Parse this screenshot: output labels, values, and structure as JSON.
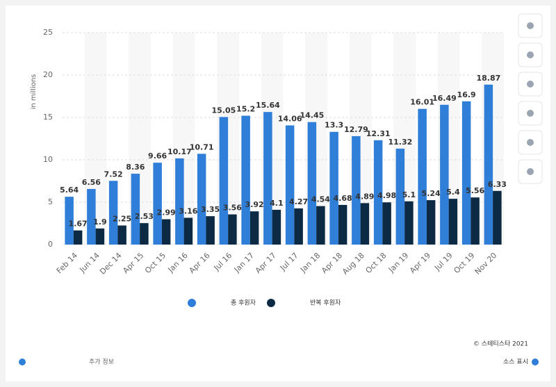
{
  "chart_data": {
    "type": "bar",
    "ylabel": "in millions",
    "categories": [
      "Feb 14",
      "Jun 14",
      "Dec 14",
      "Apr 15",
      "Oct 15",
      "Jan 16",
      "Apr 16",
      "Jul 16",
      "Jan 17",
      "Apr 17",
      "Jul 17",
      "Jan 18",
      "Apr 18",
      "Aug 18",
      "Oct 18",
      "Jan 19",
      "Apr 19",
      "Jul 19",
      "Oct 19",
      "Nov 20"
    ],
    "series": [
      {
        "name": "총 후원자",
        "color": "#2f7ed8",
        "values": [
          5.64,
          6.56,
          7.52,
          8.36,
          9.66,
          10.17,
          10.71,
          15.05,
          15.2,
          15.64,
          14.06,
          14.45,
          13.3,
          12.79,
          12.31,
          11.32,
          16.01,
          16.49,
          16.9,
          18.87
        ]
      },
      {
        "name": "반복 후원자",
        "color": "#0d2a45",
        "values": [
          1.67,
          1.9,
          2.25,
          2.53,
          2.99,
          3.16,
          3.35,
          3.56,
          3.92,
          4.1,
          4.27,
          4.54,
          4.68,
          4.89,
          4.98,
          5.1,
          5.24,
          5.4,
          5.56,
          6.33
        ]
      }
    ],
    "ylim": [
      0,
      25
    ],
    "yticks": [
      0,
      5,
      10,
      15,
      20,
      25
    ],
    "grid": true,
    "legend": "bottom"
  },
  "footer": {
    "copyright": "© 스테티스타 2021",
    "more_info": "추가 정보",
    "source": "소스 표시"
  }
}
